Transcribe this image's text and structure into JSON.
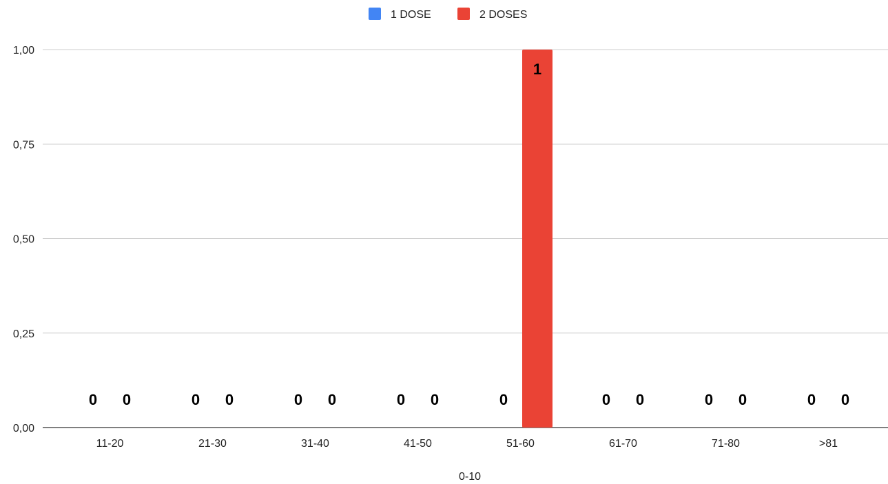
{
  "chart_data": {
    "type": "bar",
    "categories": [
      "11-20",
      "21-30",
      "31-40",
      "41-50",
      "51-60",
      "61-70",
      "71-80",
      ">81"
    ],
    "series": [
      {
        "name": "1 DOSE",
        "color": "#4285f4",
        "values": [
          0,
          0,
          0,
          0,
          0,
          0,
          0,
          0
        ]
      },
      {
        "name": "2 DOSES",
        "color": "#ea4335",
        "values": [
          0,
          0,
          0,
          0,
          1,
          0,
          0,
          0
        ]
      }
    ],
    "xlabel": "0-10",
    "ylabel": "",
    "ylim": [
      0,
      1
    ],
    "yticks": [
      {
        "value": 0,
        "label": "0,00"
      },
      {
        "value": 0.25,
        "label": "0,25"
      },
      {
        "value": 0.5,
        "label": "0,50"
      },
      {
        "value": 0.75,
        "label": "0,75"
      },
      {
        "value": 1,
        "label": "1,00"
      }
    ],
    "grid": true,
    "legend_position": "top-center"
  }
}
